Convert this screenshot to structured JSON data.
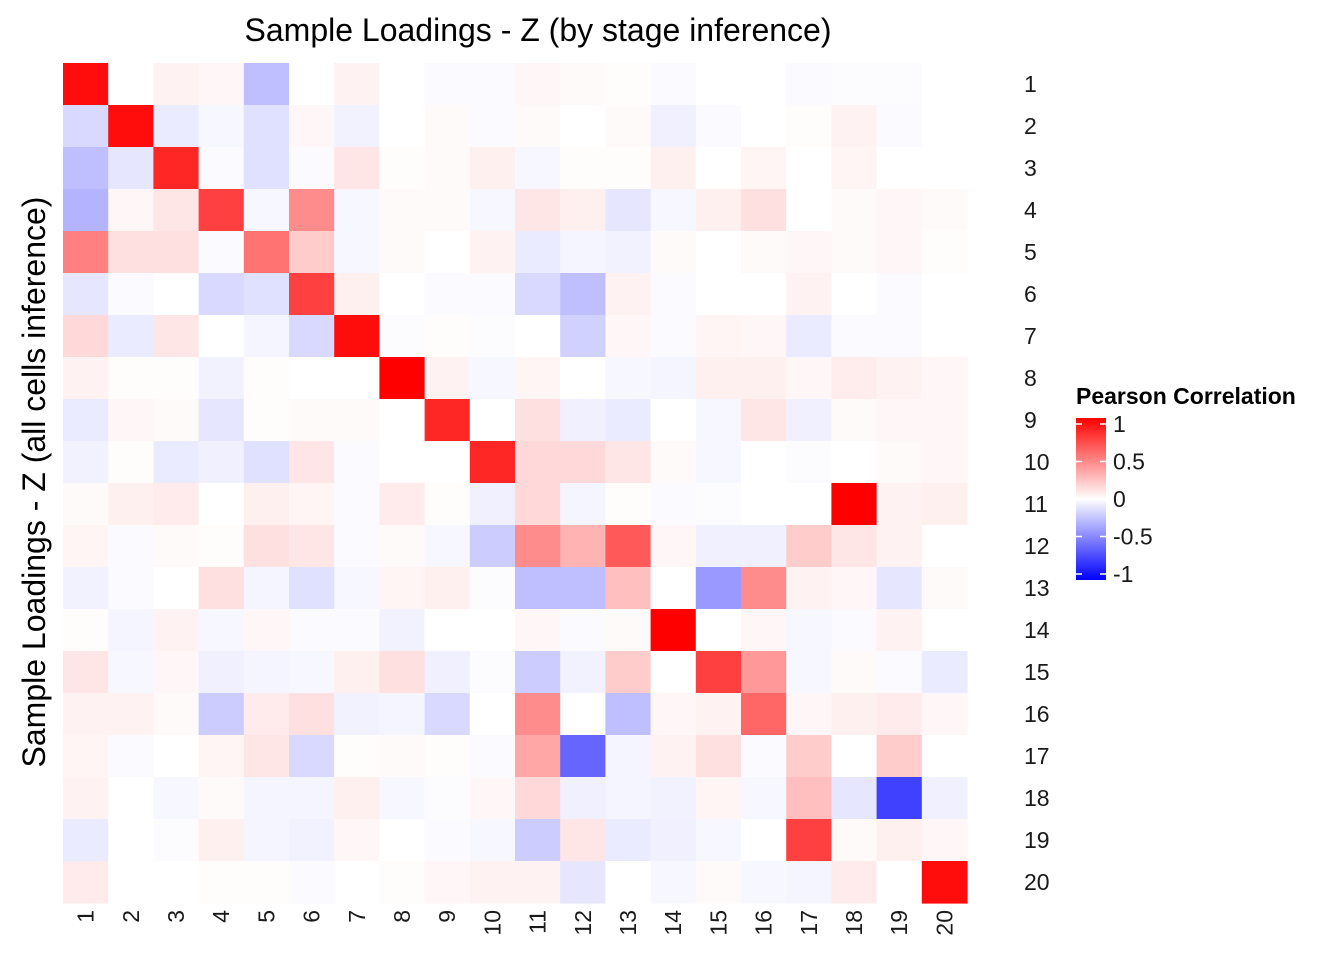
{
  "chart_data": {
    "type": "heatmap",
    "title": "Sample Loadings - Z (by stage inference)",
    "ylabel": "Sample Loadings - Z (all cells inference)",
    "xlabel": "",
    "x_categories": [
      "1",
      "2",
      "3",
      "4",
      "5",
      "6",
      "7",
      "8",
      "9",
      "10",
      "11",
      "12",
      "13",
      "14",
      "15",
      "16",
      "17",
      "18",
      "19",
      "20"
    ],
    "y_categories": [
      "1",
      "2",
      "3",
      "4",
      "5",
      "6",
      "7",
      "8",
      "9",
      "10",
      "11",
      "12",
      "13",
      "14",
      "15",
      "16",
      "17",
      "18",
      "19",
      "20"
    ],
    "legend": {
      "title": "Pearson Correlation",
      "ticks": [
        1,
        0.5,
        0,
        -0.5,
        -1
      ],
      "tick_labels": [
        "1",
        "0.5",
        "0",
        "-0.5",
        "-1"
      ],
      "position": "right"
    },
    "color_scale": {
      "low": "#0000ff",
      "mid": "#ffffff",
      "high": "#ff0000",
      "limits": [
        -1,
        1
      ]
    },
    "values": [
      [
        0.95,
        0.0,
        0.05,
        0.03,
        -0.25,
        0.0,
        0.05,
        0.0,
        -0.02,
        -0.02,
        0.03,
        0.02,
        0.01,
        -0.02,
        0.0,
        0.0,
        -0.02,
        -0.01,
        -0.01,
        0.0
      ],
      [
        -0.15,
        0.95,
        -0.08,
        -0.03,
        -0.12,
        0.03,
        -0.05,
        0.0,
        0.02,
        -0.02,
        0.02,
        0.0,
        0.02,
        -0.06,
        -0.02,
        0.0,
        0.01,
        0.05,
        -0.02,
        0.0
      ],
      [
        -0.25,
        -0.1,
        0.85,
        -0.02,
        -0.12,
        -0.02,
        0.1,
        0.01,
        0.02,
        0.06,
        -0.03,
        0.01,
        0.01,
        0.06,
        0.0,
        0.04,
        0.0,
        0.04,
        0.0,
        0.0
      ],
      [
        -0.3,
        0.03,
        0.1,
        0.75,
        -0.03,
        0.45,
        -0.03,
        0.02,
        0.02,
        -0.03,
        0.1,
        0.06,
        -0.1,
        -0.03,
        0.06,
        0.12,
        0.0,
        0.02,
        0.03,
        0.02
      ],
      [
        0.5,
        0.12,
        0.12,
        -0.02,
        0.55,
        0.2,
        -0.03,
        0.02,
        0.0,
        0.05,
        -0.08,
        -0.04,
        -0.05,
        0.02,
        0.0,
        0.02,
        0.03,
        0.02,
        0.03,
        0.01
      ],
      [
        -0.1,
        -0.02,
        0.0,
        -0.15,
        -0.12,
        0.75,
        0.06,
        0.0,
        -0.02,
        -0.02,
        -0.15,
        -0.25,
        0.05,
        -0.02,
        0.0,
        0.0,
        0.05,
        0.0,
        -0.02,
        0.0
      ],
      [
        0.15,
        -0.08,
        0.1,
        0.0,
        -0.04,
        -0.15,
        0.95,
        -0.01,
        0.01,
        -0.01,
        0.0,
        -0.18,
        0.03,
        -0.02,
        0.04,
        0.03,
        -0.08,
        -0.02,
        -0.02,
        0.0
      ],
      [
        0.05,
        0.01,
        0.01,
        -0.05,
        0.01,
        0.0,
        0.0,
        1.0,
        0.05,
        -0.03,
        0.04,
        0.0,
        -0.03,
        -0.04,
        0.06,
        0.06,
        0.03,
        0.07,
        0.05,
        0.03
      ],
      [
        -0.08,
        0.03,
        0.02,
        -0.1,
        0.01,
        0.02,
        0.02,
        0.0,
        0.85,
        0.0,
        0.12,
        -0.06,
        -0.08,
        0.0,
        -0.03,
        0.1,
        -0.06,
        0.02,
        0.03,
        0.03
      ],
      [
        -0.05,
        0.01,
        -0.08,
        -0.06,
        -0.12,
        0.1,
        -0.02,
        0.0,
        0.0,
        0.85,
        0.15,
        0.15,
        0.1,
        0.02,
        -0.03,
        0.0,
        -0.01,
        0.0,
        0.02,
        0.03
      ],
      [
        0.02,
        0.06,
        0.08,
        0.0,
        0.06,
        0.04,
        -0.02,
        0.08,
        0.01,
        -0.06,
        0.15,
        -0.04,
        0.01,
        -0.02,
        -0.01,
        0.0,
        0.0,
        1.0,
        0.05,
        0.06
      ],
      [
        0.04,
        -0.02,
        0.02,
        0.01,
        0.12,
        0.1,
        -0.02,
        0.02,
        -0.03,
        -0.2,
        0.45,
        0.3,
        0.65,
        0.03,
        -0.06,
        -0.06,
        0.2,
        0.1,
        0.05,
        0.0
      ],
      [
        -0.05,
        -0.02,
        0.0,
        0.12,
        -0.04,
        -0.12,
        -0.03,
        0.04,
        0.06,
        -0.01,
        -0.25,
        -0.25,
        0.25,
        0.0,
        -0.4,
        0.45,
        0.05,
        0.03,
        -0.1,
        0.02
      ],
      [
        0.01,
        -0.04,
        0.05,
        -0.03,
        0.03,
        -0.02,
        -0.02,
        -0.05,
        0.0,
        0.0,
        0.03,
        -0.02,
        0.02,
        1.0,
        0.0,
        0.03,
        -0.03,
        -0.02,
        0.05,
        0.0
      ],
      [
        0.1,
        -0.03,
        0.03,
        -0.06,
        -0.04,
        -0.03,
        0.06,
        0.12,
        -0.06,
        -0.01,
        -0.2,
        -0.05,
        0.2,
        0.0,
        0.75,
        0.4,
        -0.03,
        0.02,
        -0.02,
        -0.08
      ],
      [
        0.05,
        0.05,
        0.02,
        -0.2,
        0.08,
        0.12,
        -0.05,
        -0.04,
        -0.15,
        0.0,
        0.45,
        0.0,
        -0.25,
        0.03,
        0.05,
        0.6,
        0.03,
        0.06,
        0.08,
        0.03
      ],
      [
        0.04,
        -0.02,
        0.0,
        0.04,
        0.1,
        -0.15,
        0.01,
        0.02,
        0.01,
        -0.02,
        0.35,
        -0.6,
        -0.04,
        0.05,
        0.12,
        -0.02,
        0.2,
        0.0,
        0.2,
        0.0
      ],
      [
        0.05,
        0.0,
        -0.03,
        0.02,
        -0.04,
        -0.04,
        0.06,
        -0.03,
        -0.01,
        0.03,
        0.15,
        -0.06,
        -0.04,
        -0.05,
        0.04,
        -0.03,
        0.25,
        -0.1,
        -0.75,
        -0.06
      ],
      [
        -0.08,
        0.0,
        -0.01,
        0.06,
        -0.04,
        -0.05,
        0.03,
        0.0,
        -0.02,
        -0.03,
        -0.2,
        0.1,
        -0.08,
        -0.06,
        -0.03,
        0.0,
        0.75,
        0.02,
        0.06,
        0.03
      ],
      [
        0.08,
        0.0,
        0.0,
        0.01,
        0.01,
        -0.02,
        0.0,
        0.01,
        0.03,
        0.05,
        0.05,
        -0.1,
        0.0,
        -0.03,
        0.02,
        -0.03,
        -0.04,
        0.08,
        0.0,
        0.95
      ]
    ]
  }
}
